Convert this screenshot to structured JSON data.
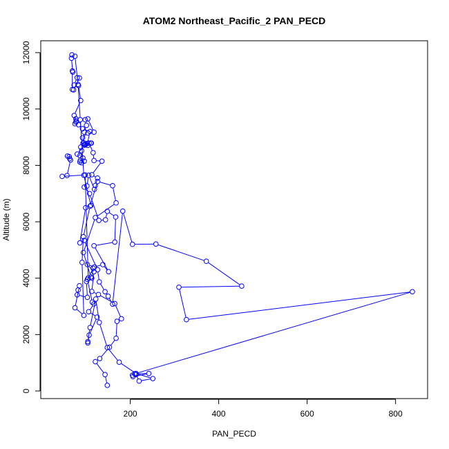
{
  "chart_data": {
    "type": "line",
    "title": "ATOM2 Northeast_Pacific_2 PAN_PECD",
    "xlabel": "PAN_PECD",
    "ylabel": "Altitude (m)",
    "xlim": [
      30,
      840
    ],
    "ylim": [
      200,
      11950
    ],
    "x_ticks": [
      200,
      400,
      600,
      800
    ],
    "y_ticks": [
      0,
      2000,
      4000,
      6000,
      8000,
      10000,
      12000
    ],
    "series_color": "#0000ff",
    "series": [
      {
        "marker": "open-circle",
        "line": true,
        "x": [
          148,
          143,
          121,
          131,
          153,
          168,
          170,
          180,
          165,
          128,
          113,
          118,
          103,
          119,
          138,
          151,
          118,
          165,
          167,
          148,
          144,
          129,
          108,
          96,
          102,
          106,
          119,
          121,
          126,
          113,
          136,
          118,
          116,
          107,
          93,
          96,
          101,
          98,
          104,
          118,
          104,
          92,
          95,
          100,
          112,
          111,
          96,
          104,
          88,
          90,
          87,
          86,
          90,
          96,
          93,
          86,
          80,
          97,
          103,
          109,
          92,
          83,
          78,
          77,
          75,
          77,
          73,
          88,
          83,
          73,
          80,
          85,
          72,
          69,
          69,
          70,
          67,
          68,
          75,
          82,
          87,
          95,
          111,
          99,
          86,
          96,
          126,
          130,
          143,
          150,
          160,
          183,
          205,
          258,
          372,
          452,
          310,
          327,
          838,
          210,
          242,
          206,
          205,
          213,
          220,
          251,
          213,
          175,
          148,
          130,
          122,
          109,
          104,
          104,
          107,
          125,
          106,
          118,
          114,
          103,
          113,
          116,
          101,
          103,
          80,
          82,
          85,
          75,
          95,
          91,
          94,
          109,
          126,
          160,
          168,
          121,
          94,
          111,
          105,
          98,
          46,
          57,
          65,
          63,
          62,
          58
        ],
        "y": [
          200,
          580,
          1040,
          1150,
          1550,
          1870,
          2470,
          2560,
          3100,
          3420,
          3530,
          4230,
          4480,
          4400,
          4480,
          4230,
          5150,
          5280,
          6170,
          6370,
          6070,
          6050,
          7000,
          7230,
          7270,
          7650,
          7150,
          7290,
          7550,
          7670,
          8150,
          8170,
          8450,
          8790,
          8780,
          9180,
          9420,
          9620,
          9650,
          9180,
          9150,
          8980,
          8800,
          8750,
          8790,
          8790,
          8740,
          8710,
          8650,
          8520,
          8180,
          8120,
          8090,
          8150,
          8260,
          8350,
          8400,
          8720,
          8780,
          9200,
          9300,
          9440,
          9580,
          9650,
          9480,
          9540,
          9770,
          10300,
          10830,
          10850,
          11110,
          11100,
          10680,
          10690,
          11350,
          11310,
          11800,
          11920,
          11870,
          10870,
          9620,
          7650,
          6580,
          6500,
          5250,
          5340,
          4300,
          3870,
          3520,
          3360,
          3080,
          6380,
          5200,
          5210,
          4600,
          3720,
          3680,
          2530,
          3520,
          610,
          620,
          510,
          560,
          580,
          350,
          440,
          620,
          1020,
          1540,
          2430,
          3260,
          2250,
          1750,
          1700,
          1980,
          2620,
          2810,
          3090,
          3150,
          3960,
          4000,
          4350,
          3880,
          3320,
          3410,
          3580,
          3730,
          2950,
          2680,
          4560,
          5470,
          6550,
          7430,
          7280,
          6670,
          6150,
          4910,
          4040,
          4010,
          7660,
          7610,
          7640,
          8190,
          8240,
          8310,
          8330
        ]
      }
    ]
  }
}
